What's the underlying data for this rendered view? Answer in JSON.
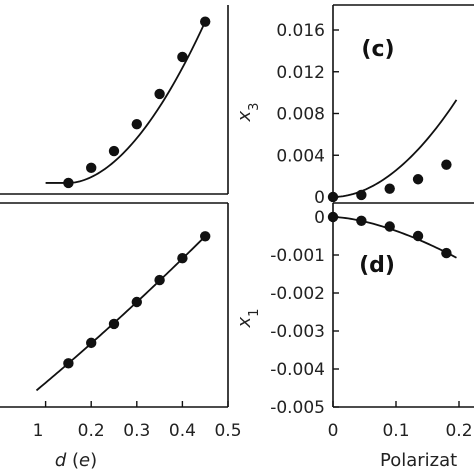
{
  "chart_data": [
    {
      "type": "scatter",
      "panel": "",
      "xlabel": "",
      "ylabel": "",
      "xlim": [
        0.0,
        0.5
      ],
      "ylim": [
        0.0,
        1.0
      ],
      "x": [
        0.15,
        0.2,
        0.25,
        0.3,
        0.35,
        0.4,
        0.45
      ],
      "y": [
        0.03,
        0.12,
        0.22,
        0.38,
        0.56,
        0.78,
        0.99
      ],
      "x_ticks": [],
      "y_ticks": [],
      "grid": false
    },
    {
      "type": "scatter",
      "panel": "",
      "xlabel": "d (e)",
      "ylabel": "",
      "xlim": [
        0.0,
        0.5
      ],
      "ylim": [
        0.0,
        1.0
      ],
      "x": [
        0.15,
        0.2,
        0.25,
        0.3,
        0.35,
        0.4,
        0.45
      ],
      "y": [
        0.08,
        0.22,
        0.35,
        0.5,
        0.65,
        0.8,
        0.95
      ],
      "x_ticks": [
        "1",
        "0.2",
        "0.3",
        "0.4",
        "0.5"
      ],
      "y_ticks": [],
      "grid": false
    },
    {
      "type": "scatter",
      "panel": "(c)",
      "xlabel": "",
      "ylabel": "x3",
      "xlim": [
        0.0,
        0.3
      ],
      "ylim": [
        0.0,
        0.018
      ],
      "x": [
        0.0,
        0.045,
        0.09,
        0.135,
        0.18
      ],
      "y": [
        0.0,
        0.0002,
        0.0008,
        0.0017,
        0.0031
      ],
      "y_ticks": [
        "0",
        "0.004",
        "0.008",
        "0.012",
        "0.016"
      ],
      "grid": false
    },
    {
      "type": "scatter",
      "panel": "(d)",
      "xlabel": "Polarizat",
      "ylabel": "x1",
      "xlim": [
        0.0,
        0.3
      ],
      "ylim": [
        -0.005,
        0.0
      ],
      "x": [
        0.0,
        0.045,
        0.09,
        0.135,
        0.18
      ],
      "y": [
        0.0,
        -0.0001,
        -0.00025,
        -0.0005,
        -0.00095
      ],
      "x_ticks": [
        "0",
        "0.1",
        "0.2"
      ],
      "y_ticks": [
        "0",
        "-0.001",
        "-0.002",
        "-0.003",
        "-0.004",
        "-0.005"
      ],
      "grid": false
    }
  ]
}
